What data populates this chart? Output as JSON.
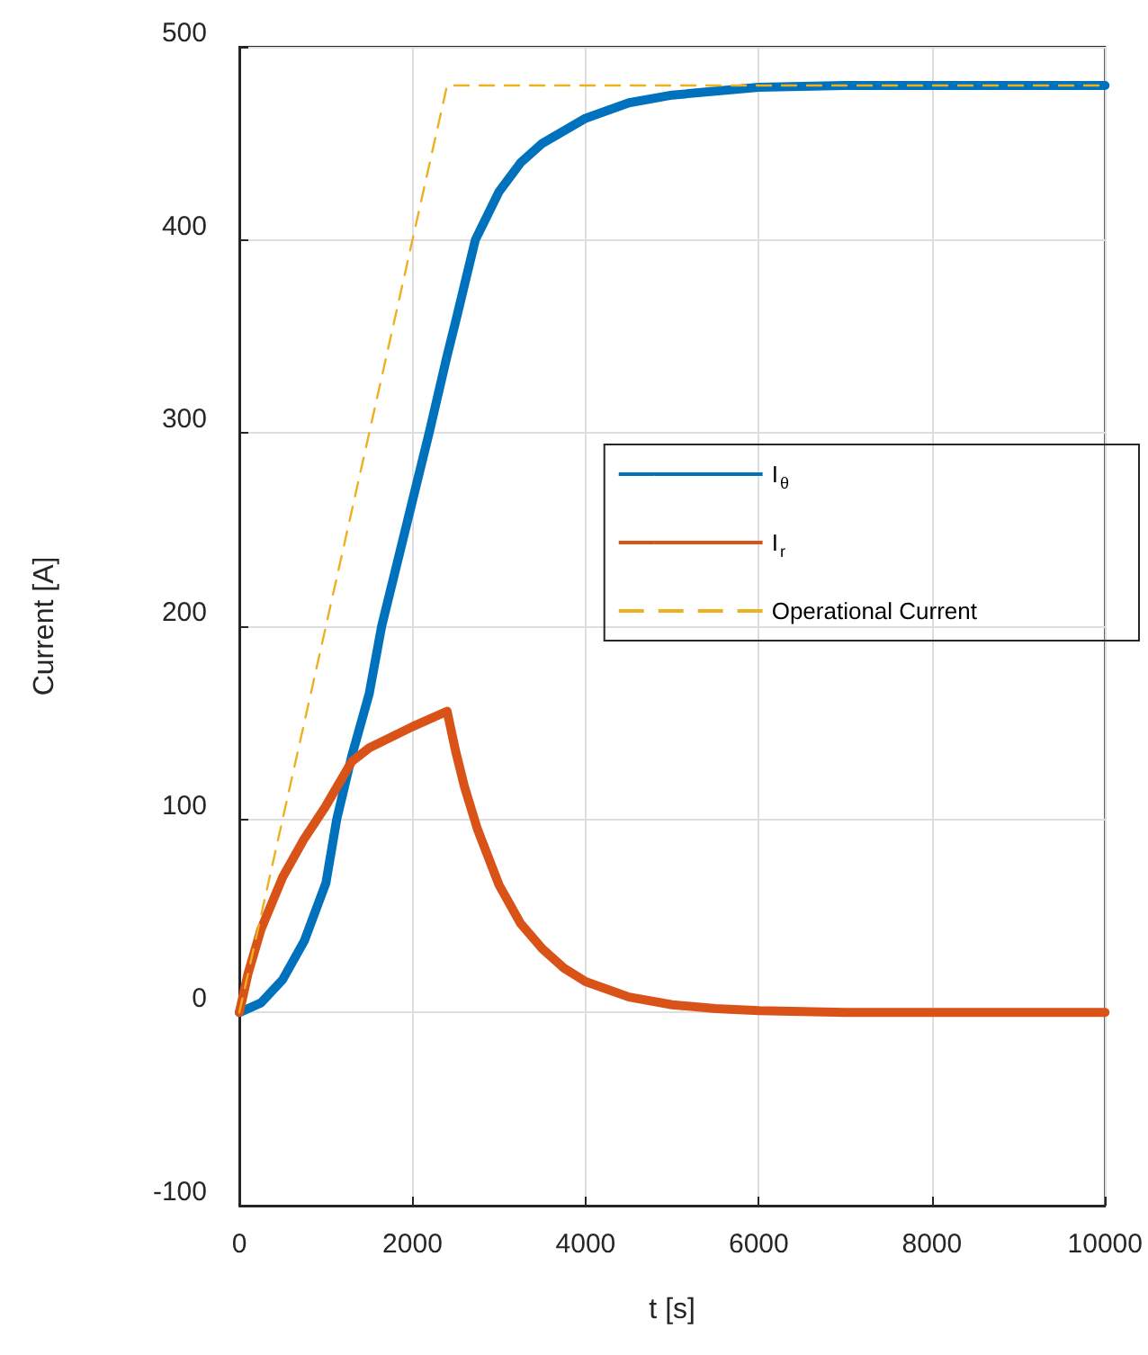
{
  "chart_data": {
    "type": "line",
    "xlabel": "t [s]",
    "ylabel": "Current [A]",
    "xlim": [
      0,
      10000
    ],
    "xticks": [
      0,
      2000,
      4000,
      6000,
      8000,
      10000
    ],
    "ylim": [
      -100,
      500
    ],
    "yticks": [
      -100,
      0,
      100,
      200,
      300,
      400,
      500
    ],
    "grid": true,
    "legend": "right",
    "series": [
      {
        "name": "I$_{θ}$",
        "color": "#0072bd",
        "x": [
          0,
          250,
          500,
          750,
          1000,
          1125,
          1300,
          1500,
          1644,
          2000,
          2192,
          2400,
          2500,
          2726,
          3000,
          3250,
          3500,
          4000,
          4500,
          5000,
          6000,
          7000,
          10000
        ],
        "values": [
          0,
          5,
          17,
          37,
          67,
          100,
          133,
          165,
          200,
          265,
          300,
          340,
          358,
          400,
          425,
          440,
          450,
          463,
          471,
          475,
          479,
          480,
          480
        ]
      },
      {
        "name": "I$_{r}$",
        "color": "#d95319",
        "x": [
          0,
          100,
          250,
          500,
          750,
          1000,
          1300,
          1500,
          2000,
          2400,
          2500,
          2600,
          2750,
          3000,
          3250,
          3500,
          3750,
          4000,
          4500,
          5000,
          5500,
          6000,
          7000,
          10000
        ],
        "values": [
          0,
          20,
          43,
          70,
          90,
          107,
          130,
          137,
          148,
          156,
          135,
          117,
          95,
          66,
          46,
          33,
          23,
          16,
          8,
          4,
          2,
          1,
          0,
          0
        ]
      },
      {
        "name": "Operational Current",
        "color": "#edb120",
        "line_style": "dashed",
        "x": [
          0,
          2400,
          10000
        ],
        "values": [
          0,
          480,
          480
        ]
      }
    ]
  }
}
